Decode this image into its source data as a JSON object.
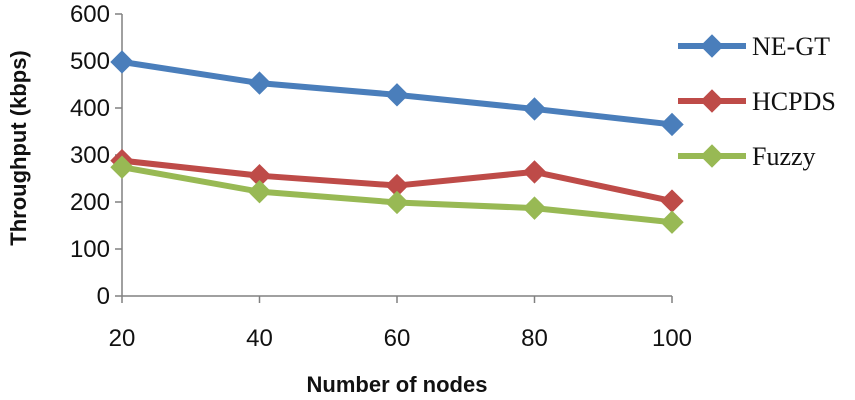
{
  "chart_data": {
    "type": "line",
    "title": "",
    "xlabel": "Number of nodes",
    "ylabel": "Throughput (kbps)",
    "x": [
      20,
      40,
      60,
      80,
      100
    ],
    "xticks": [
      "20",
      "40",
      "60",
      "80",
      "100"
    ],
    "ylim": [
      0,
      600
    ],
    "yticks": [
      "0",
      "100",
      "200",
      "300",
      "400",
      "500",
      "600"
    ],
    "grid": false,
    "legend_position": "right",
    "series": [
      {
        "name": "NE-GT",
        "color": "#4a7ebb",
        "values": [
          498,
          453,
          428,
          398,
          365
        ]
      },
      {
        "name": "HCPDS",
        "color": "#be4b48",
        "values": [
          288,
          256,
          235,
          264,
          202
        ]
      },
      {
        "name": "Fuzzy",
        "color": "#98b954",
        "values": [
          274,
          222,
          199,
          187,
          157
        ]
      }
    ]
  }
}
